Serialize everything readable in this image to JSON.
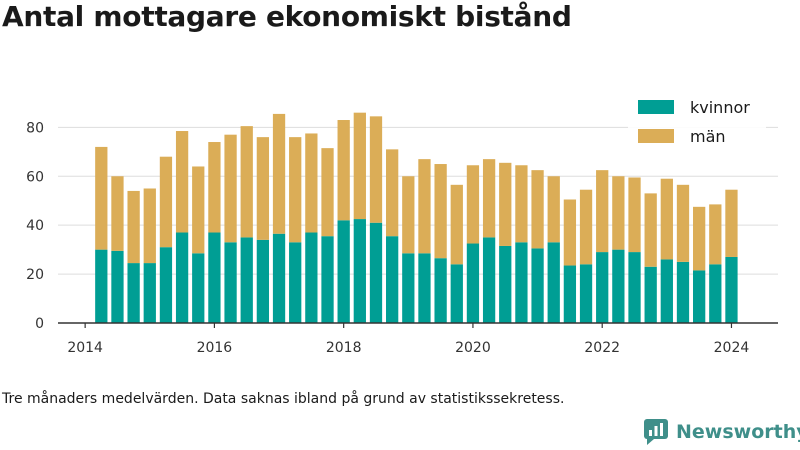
{
  "title": "Antal mottagare ekonomiskt bistånd",
  "note": "Tre månaders medelvärden. Data saknas ibland på grund av statistikssekretess.",
  "brand": {
    "name": "Newsworthy",
    "color": "#3f8f8a"
  },
  "colors": {
    "kvinnor": "#009e94",
    "man": "#dbad57",
    "axis": "#333333",
    "grid": "#dddddd"
  },
  "chart_data": {
    "type": "bar",
    "stacked": true,
    "x_ticks": [
      2014,
      2016,
      2018,
      2020,
      2022,
      2024
    ],
    "x": [
      2014.25,
      2014.5,
      2014.75,
      2015.0,
      2015.25,
      2015.5,
      2015.75,
      2016.0,
      2016.25,
      2016.5,
      2016.75,
      2017.0,
      2017.25,
      2017.5,
      2017.75,
      2018.0,
      2018.25,
      2018.5,
      2018.75,
      2019.0,
      2019.25,
      2019.5,
      2019.75,
      2020.0,
      2020.25,
      2020.5,
      2020.75,
      2021.0,
      2021.25,
      2021.5,
      2021.75,
      2022.0,
      2022.25,
      2022.5,
      2022.75,
      2023.0,
      2023.25,
      2023.5,
      2023.75,
      2024.0
    ],
    "series": [
      {
        "name": "kvinnor",
        "color": "#009e94",
        "values": [
          30,
          29.5,
          24.5,
          24.5,
          31,
          37,
          28.5,
          37,
          33,
          35,
          34,
          36.5,
          33,
          37,
          35.5,
          42,
          42.5,
          41,
          35.5,
          28.5,
          28.5,
          26.5,
          24,
          32.5,
          35,
          31.5,
          33,
          30.5,
          33,
          23.5,
          24,
          29,
          30,
          29,
          23,
          26,
          25,
          21.5,
          24,
          27
        ]
      },
      {
        "name": "män",
        "color": "#dbad57",
        "values": [
          42,
          30.5,
          29.5,
          30.5,
          37,
          41.5,
          35.5,
          37,
          44,
          45.5,
          42,
          49,
          43,
          40.5,
          36,
          41,
          43.5,
          43.5,
          35.5,
          31.5,
          38.5,
          38.5,
          32.5,
          32,
          32,
          34,
          31.5,
          32,
          27,
          27,
          30.5,
          33.5,
          30,
          30.5,
          30,
          33,
          31.5,
          26,
          24.5,
          27.5
        ]
      }
    ],
    "y_ticks": [
      0,
      20,
      40,
      60,
      80
    ],
    "ylim": [
      0,
      92
    ],
    "xlim": [
      2013.58,
      2024.72
    ],
    "grid": true,
    "legend": {
      "position": "top-right",
      "entries": [
        "kvinnor",
        "män"
      ]
    }
  }
}
